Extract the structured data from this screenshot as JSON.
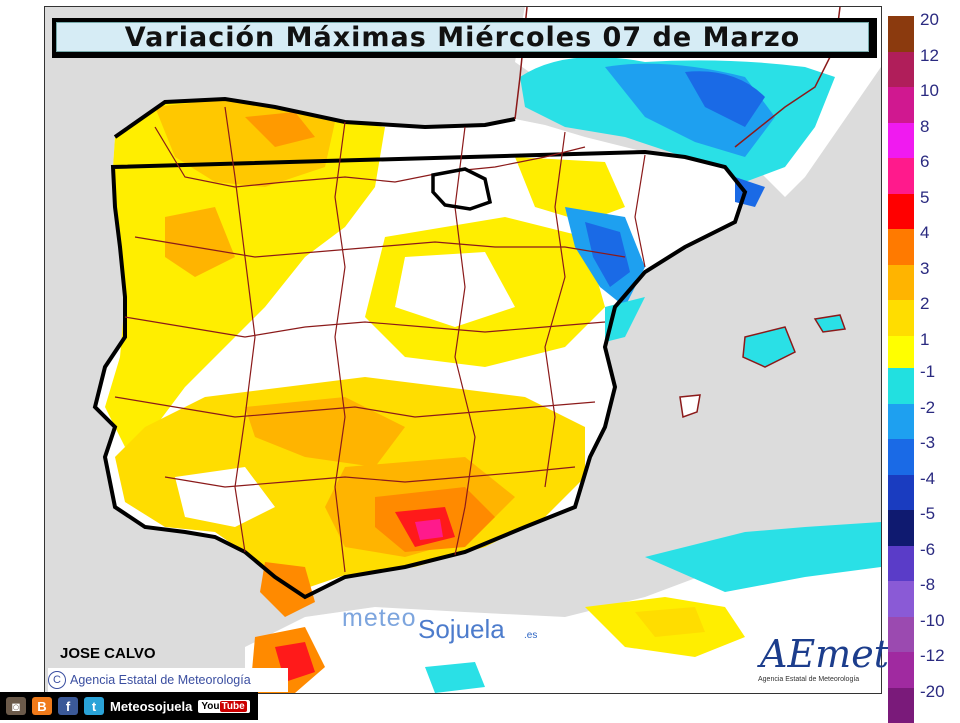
{
  "title": "Variación Máximas Miércoles 07 de Marzo",
  "author": "JOSE CALVO",
  "credit": "Agencia Estatal de Meteorología",
  "credit_symbol": "C",
  "watermark": {
    "meteo": "meteo",
    "sojuela": "Sojuela",
    "tld": ".es"
  },
  "aemet": {
    "name": "AEmet",
    "subtitle": "Agencia Estatal de Meteorología"
  },
  "social": {
    "label": "Meteosojuela",
    "youtube_you": "You",
    "youtube_tube": "Tube",
    "icons": [
      {
        "name": "instagram-icon",
        "glyph": "◙",
        "color": "#6b5a4a"
      },
      {
        "name": "blogger-icon",
        "glyph": "B",
        "color": "#f07a1a"
      },
      {
        "name": "facebook-icon",
        "glyph": "f",
        "color": "#3b5998"
      },
      {
        "name": "twitter-icon",
        "glyph": "t",
        "color": "#2aa3d8"
      }
    ]
  },
  "legend": {
    "positive": [
      {
        "label": "20",
        "color": "#8b3a0e"
      },
      {
        "label": "12",
        "color": "#b01e5a"
      },
      {
        "label": "10",
        "color": "#d01890"
      },
      {
        "label": "8",
        "color": "#f01af0"
      },
      {
        "label": "6",
        "color": "#ff1a8c"
      },
      {
        "label": "5",
        "color": "#ff0000"
      },
      {
        "label": "4",
        "color": "#ff7a00"
      },
      {
        "label": "3",
        "color": "#ffb400"
      },
      {
        "label": "2",
        "color": "#ffdd00"
      },
      {
        "label": "1",
        "color": "#ffff00"
      }
    ],
    "negative": [
      {
        "label": "-1",
        "color": "#22e0e0"
      },
      {
        "label": "-2",
        "color": "#1ea0f0"
      },
      {
        "label": "-3",
        "color": "#1a6ae6"
      },
      {
        "label": "-4",
        "color": "#1a3cc0"
      },
      {
        "label": "-5",
        "color": "#0f1a70"
      },
      {
        "label": "-6",
        "color": "#5a3cc8"
      },
      {
        "label": "-8",
        "color": "#8a5ad6"
      },
      {
        "label": "-10",
        "color": "#9b4ab0"
      },
      {
        "label": "-12",
        "color": "#a02aa0"
      },
      {
        "label": "-20",
        "color": "#7a1a7a"
      }
    ]
  },
  "colors": {
    "sea": "#dcdcdc",
    "land_neutral": "#ffffff",
    "coast": "#000000",
    "borders": "#8b1a1a"
  }
}
